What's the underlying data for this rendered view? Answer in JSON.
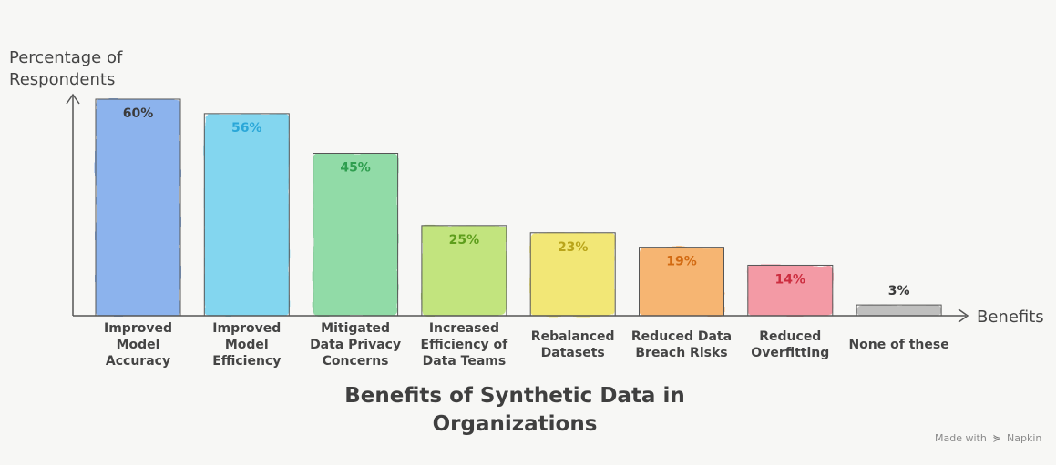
{
  "chart_data": {
    "type": "bar",
    "title": "Benefits of Synthetic Data in Organizations",
    "ylabel": "Percentage of\nRespondents",
    "xlabel": "Benefits",
    "ylim": [
      0,
      60
    ],
    "grid": false,
    "categories": [
      "Improved Model Accuracy",
      "Improved Model Efficiency",
      "Mitigated Data Privacy Concerns",
      "Increased Efficiency of Data Teams",
      "Rebalanced Datasets",
      "Reduced Data Breach Risks",
      "Reduced Overfitting",
      "None of these"
    ],
    "category_lines": [
      [
        "Improved",
        "Model",
        "Accuracy"
      ],
      [
        "Improved",
        "Model",
        "Efficiency"
      ],
      [
        "Mitigated",
        "Data Privacy",
        "Concerns"
      ],
      [
        "Increased",
        "Efficiency of",
        "Data Teams"
      ],
      [
        "Rebalanced",
        "Datasets"
      ],
      [
        "Reduced Data",
        "Breach Risks"
      ],
      [
        "Reduced",
        "Overfitting"
      ],
      [
        "None of these"
      ]
    ],
    "values": [
      60,
      56,
      45,
      25,
      23,
      19,
      14,
      3
    ],
    "value_labels": [
      "60%",
      "56%",
      "45%",
      "25%",
      "23%",
      "19%",
      "14%",
      "3%"
    ],
    "colors": [
      "#7aa7ec",
      "#6fd0ee",
      "#7fd69a",
      "#b9e06a",
      "#f1e45f",
      "#f6a95c",
      "#f28a97",
      "#b5b5b5"
    ],
    "label_colors": [
      "#3a3a3a",
      "#2aa7d8",
      "#2f9e4f",
      "#5e9e1c",
      "#b9a41a",
      "#d26a12",
      "#cc2d3f",
      "#3a3a3a"
    ]
  },
  "watermark": {
    "prefix": "Made with",
    "icon": "napkin-icon",
    "brand": "Napkin"
  }
}
